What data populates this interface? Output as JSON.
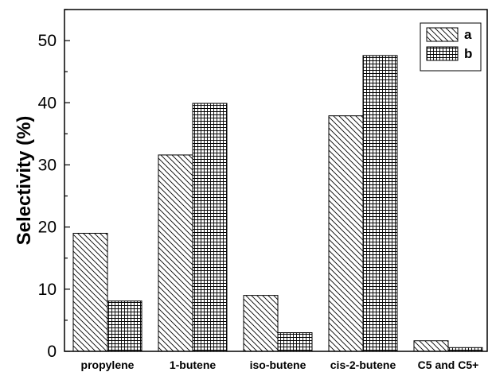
{
  "chart_data": {
    "type": "bar",
    "categories": [
      "propylene",
      "1-butene",
      "iso-butene",
      "cis-2-butene",
      "C5 and C5+"
    ],
    "series": [
      {
        "name": "a",
        "values": [
          19.0,
          31.6,
          9.0,
          37.9,
          1.7
        ],
        "pattern": "diagonal-hatch"
      },
      {
        "name": "b",
        "values": [
          8.1,
          39.9,
          3.0,
          47.6,
          0.6
        ],
        "pattern": "grid-hatch"
      }
    ],
    "title": "",
    "xlabel": "",
    "ylabel": "Selectivity (%)",
    "ylim": [
      0,
      55
    ],
    "yticks": [
      0,
      10,
      20,
      30,
      40,
      50
    ],
    "grid": false,
    "legend_position": "top-right",
    "colors": {
      "bar_fill": "#ffffff",
      "stroke": "#000000"
    }
  }
}
